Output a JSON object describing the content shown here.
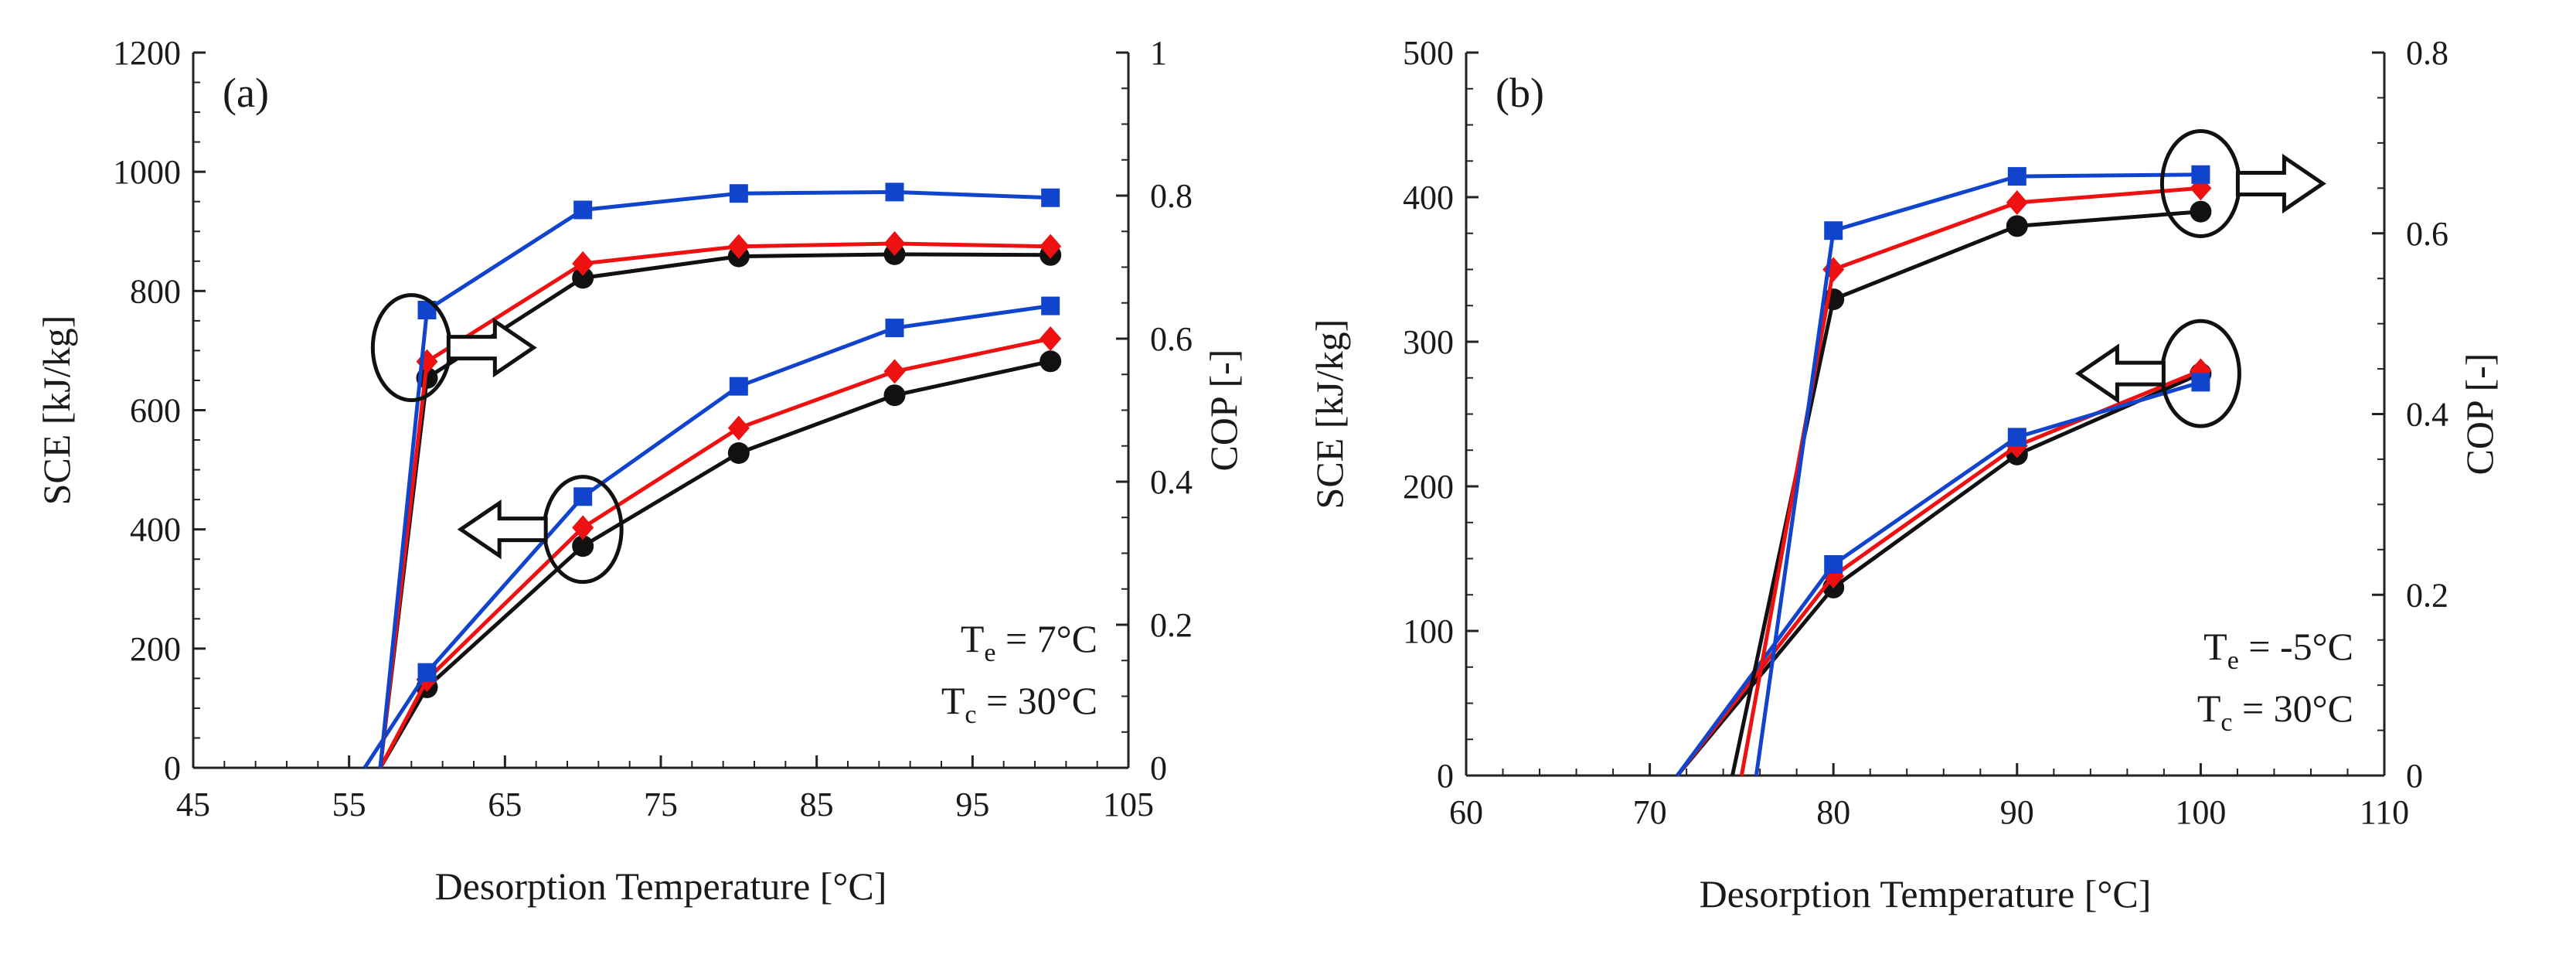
{
  "colors": {
    "black": "#111111",
    "red": "#ee1111",
    "blue": "#1144cc",
    "axis": "#222222"
  },
  "chart_data": [
    {
      "type": "line",
      "panel_label": "(a)",
      "xlabel": "Desorption Temperature [°C]",
      "ylabel_left": "SCE [kJ/kg]",
      "ylabel_right": "COP [-]",
      "xlim": [
        45,
        105
      ],
      "ylim_left": [
        0,
        1200
      ],
      "ylim_right": [
        0,
        1
      ],
      "x_ticks": [
        "45",
        "55",
        "65",
        "75",
        "85",
        "95",
        "105"
      ],
      "x_tick_values": [
        45,
        55,
        65,
        75,
        85,
        95,
        105
      ],
      "y_left_ticks": [
        "0",
        "200",
        "400",
        "600",
        "800",
        "1000",
        "1200"
      ],
      "y_left_tick_values": [
        0,
        200,
        400,
        600,
        800,
        1000,
        1200
      ],
      "y_right_ticks": [
        "0",
        "0.2",
        "0.4",
        "0.6",
        "0.8",
        "1"
      ],
      "y_right_tick_values": [
        0,
        0.2,
        0.4,
        0.6,
        0.8,
        1
      ],
      "conditions": {
        "te_main": "T",
        "te_sub": "e",
        "te_rest": " = 7°C",
        "tc_main": "T",
        "tc_sub": "c",
        "tc_rest": " = 30°C"
      },
      "series": [
        {
          "name": "SCE-black",
          "axis": "left",
          "color": "#111111",
          "marker": "circle",
          "start": [
            57,
            0
          ],
          "x": [
            60,
            70,
            80,
            90,
            100
          ],
          "values": [
            135,
            372,
            528,
            625,
            682
          ]
        },
        {
          "name": "SCE-red",
          "axis": "left",
          "color": "#ee1111",
          "marker": "diamond",
          "start": [
            57,
            0
          ],
          "x": [
            60,
            70,
            80,
            90,
            100
          ],
          "values": [
            148,
            403,
            570,
            665,
            720
          ]
        },
        {
          "name": "SCE-blue",
          "axis": "left",
          "color": "#1144cc",
          "marker": "square",
          "start": [
            56,
            0
          ],
          "x": [
            60,
            70,
            80,
            90,
            100
          ],
          "values": [
            160,
            455,
            640,
            738,
            775
          ]
        },
        {
          "name": "COP-black",
          "axis": "right",
          "color": "#111111",
          "marker": "circle",
          "start": [
            57,
            0
          ],
          "x": [
            60,
            70,
            80,
            90,
            100
          ],
          "values": [
            0.545,
            0.685,
            0.715,
            0.718,
            0.717
          ]
        },
        {
          "name": "COP-red",
          "axis": "right",
          "color": "#ee1111",
          "marker": "diamond",
          "start": [
            57,
            0
          ],
          "x": [
            60,
            70,
            80,
            90,
            100
          ],
          "values": [
            0.568,
            0.705,
            0.729,
            0.733,
            0.729
          ]
        },
        {
          "name": "COP-blue",
          "axis": "right",
          "color": "#1144cc",
          "marker": "square",
          "start": [
            57,
            0
          ],
          "x": [
            60,
            70,
            80,
            90,
            100
          ],
          "values": [
            0.64,
            0.78,
            0.803,
            0.805,
            0.797
          ]
        }
      ],
      "annotations": [
        {
          "type": "ellipse-arrow",
          "x": 59,
          "axis": "left",
          "y": 705,
          "direction": "right"
        },
        {
          "type": "ellipse-arrow",
          "x": 70,
          "axis": "left",
          "y": 400,
          "direction": "left"
        }
      ]
    },
    {
      "type": "line",
      "panel_label": "(b)",
      "xlabel": "Desorption Temperature [°C]",
      "ylabel_left": "SCE [kJ/kg]",
      "ylabel_right": "COP [-]",
      "xlim": [
        60,
        110
      ],
      "ylim_left": [
        0,
        500
      ],
      "ylim_right": [
        0,
        0.8
      ],
      "x_ticks": [
        "60",
        "70",
        "80",
        "90",
        "100",
        "110"
      ],
      "x_tick_values": [
        60,
        70,
        80,
        90,
        100,
        110
      ],
      "y_left_ticks": [
        "0",
        "100",
        "200",
        "300",
        "400",
        "500"
      ],
      "y_left_tick_values": [
        0,
        100,
        200,
        300,
        400,
        500
      ],
      "y_right_ticks": [
        "0",
        "0.2",
        "0.4",
        "0.6",
        "0.8"
      ],
      "y_right_tick_values": [
        0,
        0.2,
        0.4,
        0.6,
        0.8
      ],
      "conditions": {
        "te_main": "T",
        "te_sub": "e",
        "te_rest": " = -5°C",
        "tc_main": "T",
        "tc_sub": "c",
        "tc_rest": " = 30°C"
      },
      "series": [
        {
          "name": "SCE-black",
          "axis": "left",
          "color": "#111111",
          "marker": "circle",
          "start": [
            71.5,
            0
          ],
          "x": [
            80,
            90,
            100
          ],
          "values": [
            130,
            222,
            278
          ]
        },
        {
          "name": "SCE-red",
          "axis": "left",
          "color": "#ee1111",
          "marker": "diamond",
          "start": [
            71.5,
            0
          ],
          "x": [
            80,
            90,
            100
          ],
          "values": [
            138,
            228,
            280
          ]
        },
        {
          "name": "SCE-blue",
          "axis": "left",
          "color": "#1144cc",
          "marker": "square",
          "start": [
            71.5,
            0
          ],
          "x": [
            80,
            90,
            100
          ],
          "values": [
            146,
            234,
            272
          ]
        },
        {
          "name": "COP-black",
          "axis": "right",
          "color": "#111111",
          "marker": "circle",
          "start": [
            74.5,
            0
          ],
          "x": [
            80,
            90,
            100
          ],
          "values": [
            0.527,
            0.608,
            0.624
          ]
        },
        {
          "name": "COP-red",
          "axis": "right",
          "color": "#ee1111",
          "marker": "diamond",
          "start": [
            75,
            0
          ],
          "x": [
            80,
            90,
            100
          ],
          "values": [
            0.56,
            0.634,
            0.65
          ]
        },
        {
          "name": "COP-blue",
          "axis": "right",
          "color": "#1144cc",
          "marker": "square",
          "start": [
            75.8,
            0
          ],
          "x": [
            80,
            90,
            100
          ],
          "values": [
            0.603,
            0.663,
            0.665
          ]
        }
      ],
      "annotations": [
        {
          "type": "ellipse-arrow",
          "x": 100,
          "axis": "right",
          "y": 0.655,
          "direction": "right"
        },
        {
          "type": "ellipse-arrow",
          "x": 100,
          "axis": "left",
          "y": 278,
          "direction": "left"
        }
      ]
    }
  ]
}
